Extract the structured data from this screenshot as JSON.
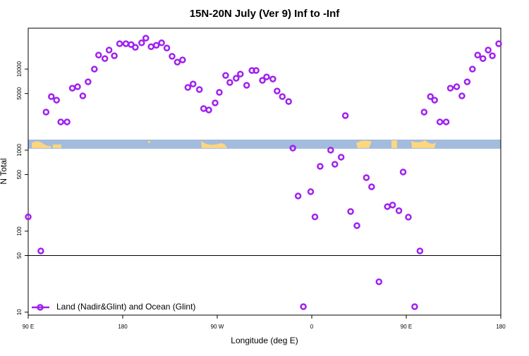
{
  "chart_data": {
    "type": "scatter",
    "title": "15N-20N July (Ver 9)   Inf to -Inf",
    "x_label": "Longitude (deg E)",
    "y_label": "N Total",
    "xlim": [
      90,
      540
    ],
    "ylim": [
      9.2,
      32000
    ],
    "log_y": true,
    "xticks": [
      {
        "value": 90,
        "label": "90 E"
      },
      {
        "value": 180,
        "label": "180"
      },
      {
        "value": 270,
        "label": "90 W"
      },
      {
        "value": 360,
        "label": "0"
      },
      {
        "value": 450,
        "label": "90 E"
      },
      {
        "value": 540,
        "label": "180"
      }
    ],
    "yticks": [
      10,
      50,
      100,
      500,
      1000,
      5000,
      10000
    ],
    "hline": 50,
    "legend": "bottom-left",
    "series": [
      {
        "name": "Land (Nadir&Glint) and Ocean (Glint)",
        "color": "#a020f0",
        "x": [
          90,
          102,
          107,
          112,
          117,
          121,
          127,
          132,
          137,
          142,
          147,
          153,
          157,
          163,
          167,
          172,
          177,
          183,
          188,
          192,
          198,
          202,
          207,
          212,
          217,
          222,
          227,
          232,
          237,
          242,
          247,
          253,
          257,
          262,
          268,
          272,
          278,
          282,
          288,
          292,
          298,
          303,
          307,
          313,
          317,
          323,
          327,
          332,
          338,
          342,
          347,
          352,
          359,
          363,
          368,
          378,
          382,
          388,
          392,
          397,
          403,
          412,
          417,
          424,
          432,
          437,
          443,
          447,
          452,
          458,
          463,
          467,
          473,
          477,
          482,
          488,
          492,
          498,
          503,
          508,
          513,
          518,
          523,
          528,
          532,
          538
        ],
        "values": [
          150,
          57,
          2950,
          4580,
          4140,
          2230,
          2230,
          5820,
          6060,
          4670,
          6970,
          10000,
          14900,
          13500,
          17200,
          14600,
          20600,
          20600,
          20100,
          18600,
          21100,
          24100,
          18900,
          19700,
          21100,
          18200,
          14400,
          12200,
          13000,
          5940,
          6560,
          5600,
          3260,
          3130,
          3830,
          5170,
          8350,
          6840,
          7710,
          8690,
          6310,
          9610,
          9610,
          7260,
          8020,
          7550,
          5370,
          4580,
          3980,
          1060,
          272,
          11.7,
          307,
          150,
          631,
          1000,
          670,
          819,
          2670,
          175,
          117,
          458,
          353,
          23.7,
          201,
          210,
          179,
          537,
          149,
          11.7,
          57,
          2950,
          4580,
          4140,
          2230,
          2230,
          5820,
          6060,
          4670,
          6970,
          10000,
          14900,
          13500,
          17200,
          14600,
          20600
        ]
      }
    ]
  }
}
